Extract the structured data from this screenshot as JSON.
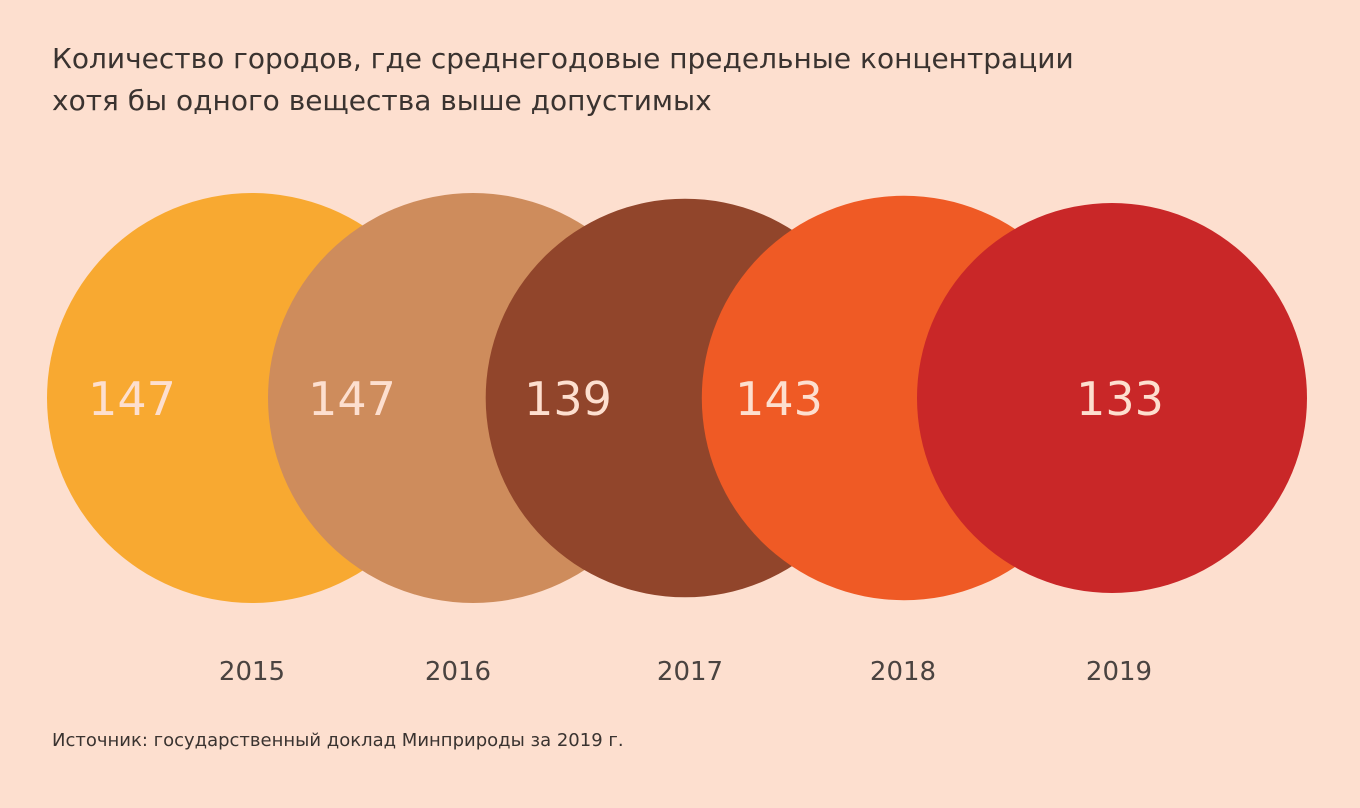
{
  "title_lines": [
    "Количество городов, где среднегодовые предельные концентрации",
    "хотя бы одного вещества выше допустимых"
  ],
  "source": "Источник: государственный доклад Минприроды за 2019 г.",
  "chart_data": {
    "type": "bubble",
    "categories": [
      "2015",
      "2016",
      "2017",
      "2018",
      "2019"
    ],
    "values": [
      147,
      147,
      139,
      143,
      133
    ],
    "colors": [
      "#F8A931",
      "#CE8C5C",
      "#91452B",
      "#EF5A25",
      "#C92728"
    ],
    "value_label_color": "#FDDFCF",
    "year_label_color": "#4a4340"
  }
}
